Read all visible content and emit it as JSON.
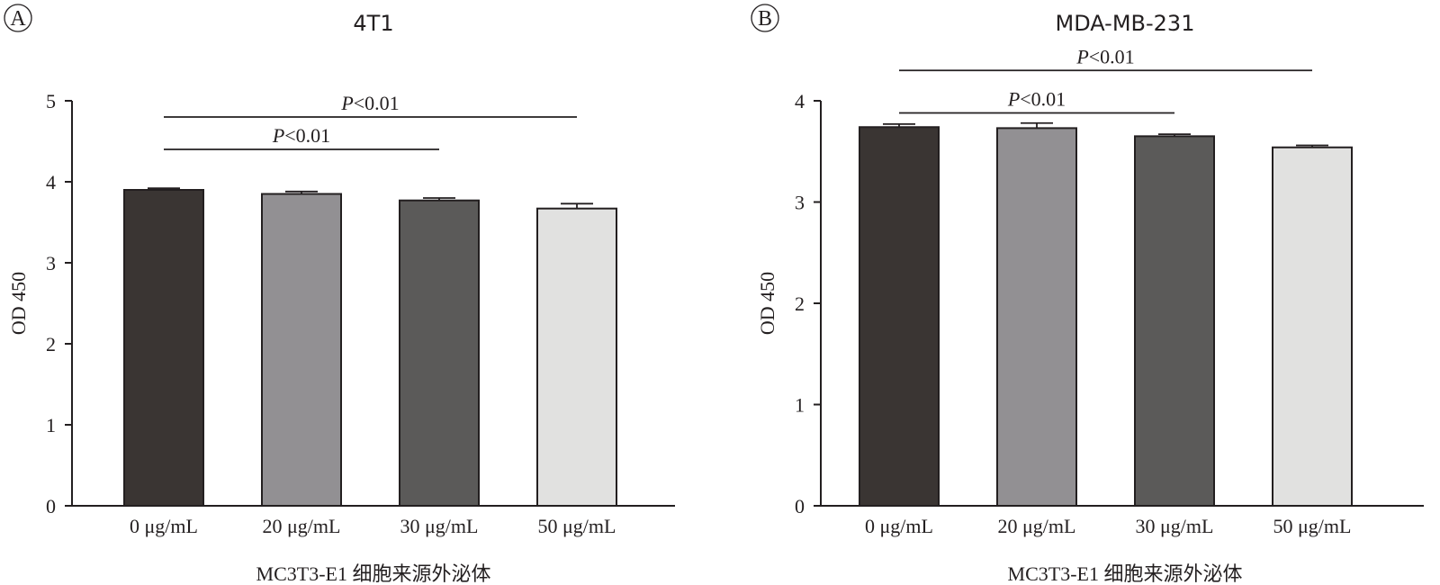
{
  "chart_data": [
    {
      "panel_label": "A",
      "type": "bar",
      "title": "4T1",
      "categories": [
        "0 μg/mL",
        "20 μg/mL",
        "30 μg/mL",
        "50 μg/mL"
      ],
      "values": [
        3.9,
        3.85,
        3.77,
        3.67
      ],
      "errors": [
        0.02,
        0.03,
        0.03,
        0.06
      ],
      "bar_colors": [
        "#3a3533",
        "#929093",
        "#5b5a59",
        "#e1e1e0"
      ],
      "xlabel": "MC3T3-E1 细胞来源外泌体",
      "ylabel": "OD 450",
      "ylim": [
        0,
        5
      ],
      "yticks": [
        0,
        1,
        2,
        3,
        4,
        5
      ],
      "grid": false,
      "significance": [
        {
          "from": 0,
          "to": 2,
          "label_italic": "P",
          "label_rest": "<0.01",
          "level": 4.4
        },
        {
          "from": 0,
          "to": 3,
          "label_italic": "P",
          "label_rest": "<0.01",
          "level": 4.8
        }
      ]
    },
    {
      "panel_label": "B",
      "type": "bar",
      "title": "MDA-MB-231",
      "categories": [
        "0 μg/mL",
        "20 μg/mL",
        "30 μg/mL",
        "50 μg/mL"
      ],
      "values": [
        3.74,
        3.73,
        3.65,
        3.54
      ],
      "errors": [
        0.03,
        0.05,
        0.02,
        0.02
      ],
      "bar_colors": [
        "#3a3533",
        "#929093",
        "#5b5a59",
        "#e1e1e0"
      ],
      "xlabel": "MC3T3-E1 细胞来源外泌体",
      "ylabel": "OD 450",
      "ylim": [
        0,
        4
      ],
      "yticks": [
        0,
        1,
        2,
        3,
        4
      ],
      "grid": false,
      "significance": [
        {
          "from": 0,
          "to": 2,
          "label_italic": "P",
          "label_rest": "<0.01",
          "level": 3.88
        },
        {
          "from": 0,
          "to": 3,
          "label_italic": "P",
          "label_rest": "<0.01",
          "level": 4.3
        }
      ]
    }
  ]
}
